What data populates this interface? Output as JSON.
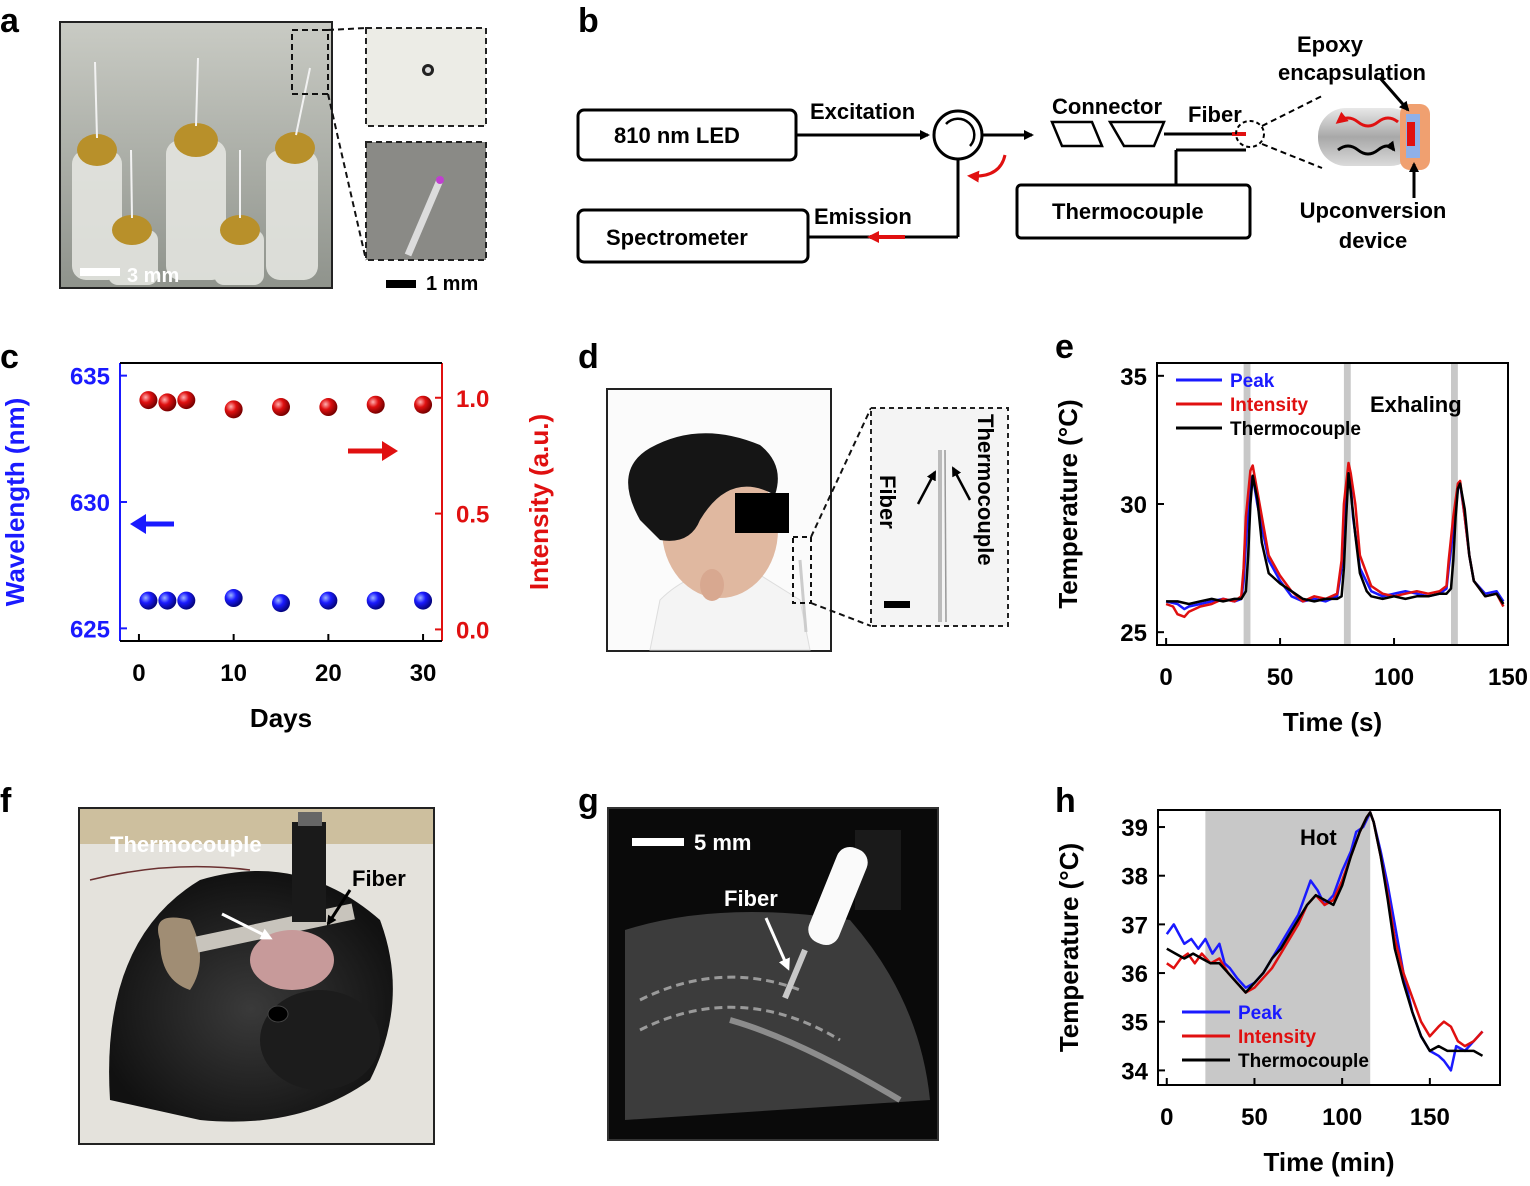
{
  "panel_labels": {
    "a": "a",
    "b": "b",
    "c": "c",
    "d": "d",
    "e": "e",
    "f": "f",
    "g": "g",
    "h": "h"
  },
  "panel_a": {
    "scale_main": "3 mm",
    "scale_inset": "1 mm"
  },
  "panel_b": {
    "led": "810 nm LED",
    "spectrometer": "Spectrometer",
    "thermocouple": "Thermocouple",
    "excitation": "Excitation",
    "emission": "Emission",
    "connector": "Connector",
    "fiber": "Fiber",
    "epoxy_line1": "Epoxy",
    "epoxy_line2": "encapsulation",
    "device_line1": "Upconversion",
    "device_line2": "device"
  },
  "panel_d": {
    "fiber": "Fiber",
    "thermocouple": "Thermocouple"
  },
  "panel_f": {
    "thermocouple": "Thermocouple",
    "fiber": "Fiber"
  },
  "panel_g": {
    "scale": "5 mm",
    "fiber": "Fiber"
  },
  "colors": {
    "blue": "#1a1aff",
    "red": "#e01010",
    "black": "#000000",
    "gray_band": "#c8c8c8"
  },
  "chart_data": [
    {
      "id": "c",
      "type": "scatter",
      "xlabel": "Days",
      "ylabel": "Wavelength (nm)",
      "y2label": "Intensity (a.u.)",
      "xticks": [
        "0",
        "10",
        "20",
        "30"
      ],
      "yticks": [
        "625",
        "630",
        "635"
      ],
      "y2ticks": [
        "0.0",
        "0.5",
        "1.0"
      ],
      "xlim": [
        -2,
        32
      ],
      "ylim": [
        624.5,
        635.5
      ],
      "y2lim": [
        -0.05,
        1.15
      ],
      "series": [
        {
          "axis": "left",
          "color": "#1a1aff",
          "x": [
            1,
            3,
            5,
            10,
            15,
            20,
            25,
            30
          ],
          "y": [
            626.1,
            626.1,
            626.1,
            626.2,
            626.0,
            626.1,
            626.1,
            626.1
          ]
        },
        {
          "axis": "right",
          "color": "#e01010",
          "x": [
            1,
            3,
            5,
            10,
            15,
            20,
            25,
            30
          ],
          "y": [
            0.99,
            0.98,
            0.99,
            0.95,
            0.96,
            0.96,
            0.97,
            0.97
          ]
        }
      ]
    },
    {
      "id": "e",
      "type": "line",
      "xlabel": "Time (s)",
      "ylabel": "Temperature (°C)",
      "annotation": "Exhaling",
      "xticks": [
        "0",
        "50",
        "100",
        "150"
      ],
      "yticks": [
        "25",
        "30",
        "35"
      ],
      "xlim": [
        -4,
        150
      ],
      "ylim": [
        24.5,
        35.5
      ],
      "bands": [
        [
          34,
          37
        ],
        [
          78,
          81
        ],
        [
          125,
          128
        ]
      ],
      "series": [
        {
          "name": "Peak",
          "color": "#1a1aff",
          "x": [
            0,
            5,
            8,
            10,
            15,
            20,
            25,
            30,
            33,
            34,
            35,
            37,
            38,
            40,
            45,
            50,
            55,
            60,
            65,
            70,
            75,
            77,
            78,
            80,
            81,
            82,
            85,
            90,
            95,
            100,
            105,
            110,
            115,
            120,
            123,
            124,
            126,
            128,
            129,
            131,
            133,
            135,
            140,
            145,
            148
          ],
          "y": [
            26.2,
            26.1,
            25.9,
            26.0,
            26.1,
            26.2,
            26.3,
            26.2,
            26.3,
            27.0,
            28.5,
            30.9,
            31.1,
            30.0,
            27.8,
            27.0,
            26.4,
            26.2,
            26.3,
            26.2,
            26.4,
            27.5,
            29.5,
            31.2,
            30.8,
            29.5,
            27.5,
            26.6,
            26.4,
            26.5,
            26.6,
            26.5,
            26.4,
            26.5,
            26.7,
            27.5,
            29.0,
            30.6,
            30.8,
            29.5,
            28.0,
            27.0,
            26.5,
            26.6,
            26.2
          ]
        },
        {
          "name": "Intensity",
          "color": "#e01010",
          "x": [
            0,
            3,
            5,
            8,
            10,
            15,
            20,
            25,
            30,
            33,
            34,
            35,
            37,
            38,
            40,
            45,
            50,
            55,
            60,
            65,
            70,
            75,
            77,
            78,
            80,
            81,
            83,
            85,
            90,
            95,
            100,
            105,
            110,
            115,
            120,
            123,
            124,
            126,
            128,
            129,
            131,
            133,
            135,
            140,
            145,
            148
          ],
          "y": [
            26.1,
            26.0,
            25.7,
            25.6,
            25.8,
            26.0,
            26.1,
            26.3,
            26.2,
            26.4,
            27.5,
            29.5,
            31.3,
            31.5,
            30.5,
            28.0,
            27.2,
            26.6,
            26.2,
            26.4,
            26.3,
            26.5,
            27.8,
            30.0,
            31.6,
            31.2,
            30.0,
            28.0,
            26.8,
            26.5,
            26.4,
            26.5,
            26.6,
            26.5,
            26.6,
            26.8,
            27.8,
            29.5,
            30.8,
            30.9,
            29.5,
            28.0,
            27.0,
            26.4,
            26.5,
            26.0
          ]
        },
        {
          "name": "Thermocouple",
          "color": "#000000",
          "x": [
            0,
            5,
            10,
            15,
            20,
            25,
            30,
            33,
            35,
            36,
            37,
            38,
            40,
            42,
            45,
            50,
            55,
            60,
            65,
            70,
            75,
            77,
            78,
            79,
            80,
            81,
            83,
            85,
            88,
            90,
            95,
            100,
            105,
            110,
            115,
            120,
            123,
            125,
            126,
            127,
            128,
            129,
            131,
            133,
            135,
            140,
            145,
            148
          ],
          "y": [
            26.2,
            26.2,
            26.1,
            26.2,
            26.3,
            26.2,
            26.3,
            26.3,
            26.6,
            28.0,
            30.0,
            31.1,
            30.2,
            28.5,
            27.3,
            26.9,
            26.6,
            26.3,
            26.2,
            26.3,
            26.3,
            26.4,
            27.5,
            29.5,
            31.2,
            30.5,
            28.8,
            27.3,
            26.6,
            26.4,
            26.3,
            26.4,
            26.3,
            26.4,
            26.4,
            26.5,
            26.5,
            26.7,
            27.8,
            29.5,
            30.6,
            30.8,
            29.8,
            28.0,
            27.0,
            26.4,
            26.5,
            26.1
          ]
        }
      ]
    },
    {
      "id": "h",
      "type": "line",
      "xlabel": "Time (min)",
      "ylabel": "Temperature (°C)",
      "annotation": "Hot",
      "xticks": [
        "0",
        "50",
        "100",
        "150"
      ],
      "yticks": [
        "34",
        "35",
        "36",
        "37",
        "38",
        "39"
      ],
      "xlim": [
        -5,
        190
      ],
      "ylim": [
        33.7,
        39.35
      ],
      "bands": [
        [
          22,
          116
        ]
      ],
      "series": [
        {
          "name": "Peak",
          "color": "#1a1aff",
          "x": [
            0,
            4,
            7,
            10,
            14,
            18,
            22,
            26,
            30,
            33,
            36,
            40,
            45,
            50,
            55,
            60,
            65,
            70,
            75,
            78,
            82,
            86,
            90,
            95,
            100,
            105,
            108,
            112,
            116,
            118,
            122,
            126,
            130,
            135,
            140,
            145,
            150,
            155,
            158,
            162,
            165,
            170,
            175,
            180
          ],
          "y": [
            36.8,
            37.0,
            36.8,
            36.6,
            36.7,
            36.5,
            36.7,
            36.4,
            36.6,
            36.2,
            36.1,
            35.9,
            35.7,
            35.8,
            36.0,
            36.3,
            36.6,
            36.9,
            37.2,
            37.5,
            37.9,
            37.7,
            37.4,
            37.6,
            38.1,
            38.5,
            38.9,
            39.0,
            39.3,
            39.1,
            38.5,
            37.8,
            37.0,
            36.0,
            35.2,
            34.7,
            34.4,
            34.3,
            34.2,
            34.0,
            34.5,
            34.4,
            34.6,
            34.8
          ]
        },
        {
          "name": "Intensity",
          "color": "#e01010",
          "x": [
            0,
            4,
            8,
            12,
            16,
            20,
            25,
            30,
            35,
            40,
            45,
            50,
            55,
            60,
            65,
            70,
            75,
            80,
            85,
            90,
            95,
            100,
            105,
            110,
            114,
            116,
            118,
            122,
            126,
            130,
            135,
            140,
            145,
            150,
            155,
            158,
            162,
            166,
            170,
            175,
            180
          ],
          "y": [
            36.2,
            36.1,
            36.3,
            36.4,
            36.2,
            36.4,
            36.2,
            36.3,
            36.0,
            35.8,
            35.6,
            35.7,
            35.9,
            36.1,
            36.4,
            36.7,
            37.0,
            37.4,
            37.6,
            37.4,
            37.5,
            37.9,
            38.4,
            38.9,
            39.2,
            39.3,
            39.1,
            38.4,
            37.6,
            36.7,
            36.0,
            35.5,
            35.0,
            34.7,
            34.9,
            35.0,
            34.9,
            34.6,
            34.5,
            34.6,
            34.8
          ]
        },
        {
          "name": "Thermocouple",
          "color": "#000000",
          "x": [
            0,
            5,
            10,
            15,
            20,
            25,
            30,
            35,
            40,
            45,
            50,
            55,
            60,
            65,
            70,
            75,
            80,
            85,
            90,
            95,
            100,
            105,
            110,
            114,
            116,
            118,
            122,
            126,
            130,
            135,
            140,
            145,
            150,
            155,
            160,
            165,
            170,
            175,
            180
          ],
          "y": [
            36.5,
            36.4,
            36.3,
            36.4,
            36.3,
            36.2,
            36.2,
            36.0,
            35.8,
            35.6,
            35.8,
            36.0,
            36.3,
            36.5,
            36.8,
            37.1,
            37.4,
            37.6,
            37.5,
            37.4,
            37.8,
            38.4,
            38.9,
            39.2,
            39.3,
            39.1,
            38.4,
            37.5,
            36.5,
            35.8,
            35.2,
            34.7,
            34.4,
            34.5,
            34.4,
            34.4,
            34.4,
            34.4,
            34.3
          ]
        }
      ]
    }
  ]
}
